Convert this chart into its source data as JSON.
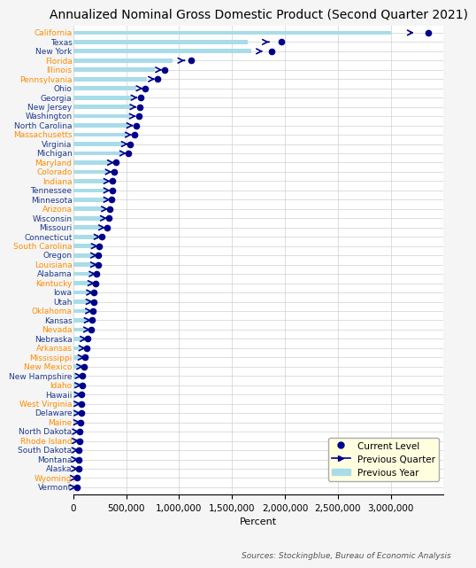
{
  "title": "Annualized Nominal Gross Domestic Product (Second Quarter 2021)",
  "xlabel": "Percent",
  "source": "Sources: Stockingblue, Bureau of Economic Analysis",
  "states": [
    "California",
    "Texas",
    "New York",
    "Florida",
    "Illinois",
    "Pennsylvania",
    "Ohio",
    "Georgia",
    "New Jersey",
    "Washington",
    "North Carolina",
    "Massachusetts",
    "Virginia",
    "Michigan",
    "Maryland",
    "Colorado",
    "Indiana",
    "Tennessee",
    "Minnesota",
    "Arizona",
    "Wisconsin",
    "Missouri",
    "Connecticut",
    "South Carolina",
    "Oregon",
    "Louisiana",
    "Alabama",
    "Kentucky",
    "Iowa",
    "Utah",
    "Oklahoma",
    "Kansas",
    "Nevada",
    "Nebraska",
    "Arkansas",
    "Mississippi",
    "New Mexico",
    "New Hampshire",
    "Idaho",
    "Hawaii",
    "West Virginia",
    "Delaware",
    "Maine",
    "North Dakota",
    "Rhode Island",
    "South Dakota",
    "Montana",
    "Alaska",
    "Wyoming",
    "Vermont"
  ],
  "state_colors": [
    "#FF8C00",
    "#1E3A8A",
    "#1E3A8A",
    "#FF8C00",
    "#FF8C00",
    "#FF8C00",
    "#1E3A8A",
    "#1E3A8A",
    "#1E3A8A",
    "#1E3A8A",
    "#1E3A8A",
    "#FF8C00",
    "#1E3A8A",
    "#1E3A8A",
    "#FF8C00",
    "#FF8C00",
    "#FF8C00",
    "#1E3A8A",
    "#1E3A8A",
    "#FF8C00",
    "#1E3A8A",
    "#1E3A8A",
    "#1E3A8A",
    "#FF8C00",
    "#1E3A8A",
    "#FF8C00",
    "#1E3A8A",
    "#FF8C00",
    "#1E3A8A",
    "#1E3A8A",
    "#FF8C00",
    "#1E3A8A",
    "#FF8C00",
    "#1E3A8A",
    "#FF8C00",
    "#FF8C00",
    "#FF8C00",
    "#1E3A8A",
    "#FF8C00",
    "#1E3A8A",
    "#FF8C00",
    "#1E3A8A",
    "#FF8C00",
    "#1E3A8A",
    "#FF8C00",
    "#1E3A8A",
    "#1E3A8A",
    "#1E3A8A",
    "#FF8C00",
    "#1E3A8A"
  ],
  "current": [
    3358599,
    1969381,
    1872858,
    1111262,
    866716,
    799228,
    683072,
    636781,
    625411,
    618553,
    592434,
    577124,
    539444,
    524098,
    402703,
    383822,
    367698,
    366226,
    365413,
    345060,
    333726,
    316826,
    271197,
    245124,
    238756,
    238194,
    224005,
    211083,
    197682,
    194894,
    188226,
    176126,
    170793,
    137047,
    124386,
    115050,
    101786,
    86875,
    83726,
    78920,
    75430,
    74450,
    71300,
    58930,
    57230,
    53680,
    50250,
    49040,
    39210,
    33040
  ],
  "prev_quarter": [
    3220000,
    1860000,
    1780000,
    1045000,
    835000,
    768000,
    655000,
    606000,
    596000,
    590000,
    565000,
    551000,
    516000,
    500000,
    385000,
    365000,
    350000,
    349000,
    349000,
    328000,
    318000,
    302000,
    259000,
    233000,
    227000,
    226000,
    213000,
    201000,
    188000,
    184000,
    178000,
    167000,
    161000,
    129000,
    117000,
    109000,
    96000,
    82000,
    79000,
    74500,
    71200,
    70500,
    67500,
    55500,
    54000,
    50500,
    47200,
    46200,
    36800,
    31000
  ],
  "prev_year": [
    3000000,
    1650000,
    1680000,
    940000,
    770000,
    695000,
    600000,
    556000,
    547000,
    540000,
    517000,
    503000,
    474000,
    460000,
    354000,
    335000,
    323000,
    322000,
    320000,
    299000,
    292000,
    277000,
    239000,
    213000,
    208000,
    209000,
    196000,
    186000,
    173000,
    170000,
    164000,
    154000,
    148000,
    119000,
    108000,
    101000,
    89000,
    76000,
    73000,
    69000,
    67000,
    66000,
    63000,
    52000,
    50500,
    47500,
    44400,
    43500,
    34800,
    29300
  ],
  "xlim": [
    0,
    3500000
  ],
  "xticks": [
    0,
    500000,
    1000000,
    1500000,
    2000000,
    2500000,
    3000000
  ],
  "bg_color": "#f5f5f5",
  "plot_bg": "#ffffff",
  "grid_color": "#d0d0d0",
  "current_color": "#00008B",
  "prev_q_color": "#00008B",
  "prev_y_color": "#a8dce8",
  "title_fontsize": 10,
  "label_fontsize": 6.5
}
